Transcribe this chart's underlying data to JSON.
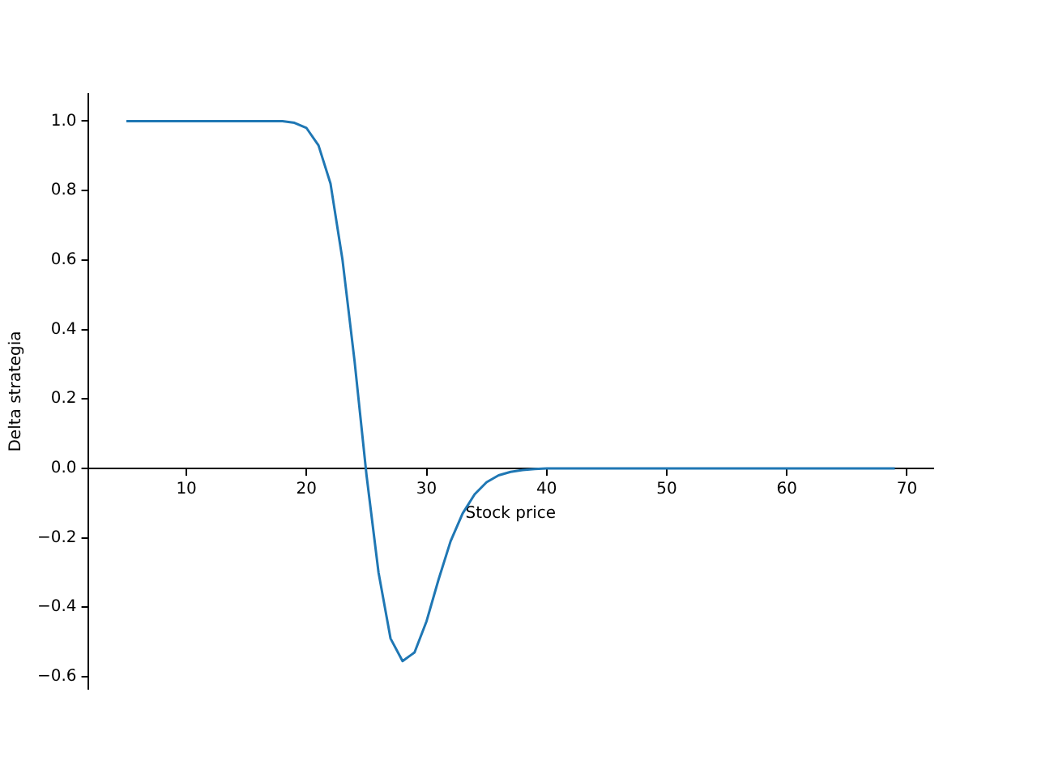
{
  "chart_data": {
    "type": "line",
    "xlabel": "Stock price",
    "ylabel": "Delta strategia",
    "x": [
      5,
      6,
      7,
      8,
      9,
      10,
      11,
      12,
      13,
      14,
      15,
      16,
      17,
      18,
      19,
      20,
      21,
      22,
      23,
      24,
      25,
      26,
      27,
      28,
      29,
      30,
      31,
      32,
      33,
      34,
      35,
      36,
      37,
      38,
      39,
      40,
      41,
      42,
      43,
      44,
      45,
      46,
      47,
      48,
      49,
      50,
      51,
      52,
      53,
      54,
      55,
      56,
      57,
      58,
      59,
      60,
      61,
      62,
      63,
      64,
      65,
      66,
      67,
      68,
      69
    ],
    "series": [
      {
        "color": "#1f77b4",
        "values": [
          1,
          1,
          1,
          1,
          1,
          1,
          1,
          1,
          1,
          1,
          1,
          1,
          1,
          1,
          0.995,
          0.98,
          0.93,
          0.82,
          0.6,
          0.31,
          -0.02,
          -0.3,
          -0.49,
          -0.555,
          -0.53,
          -0.44,
          -0.32,
          -0.21,
          -0.13,
          -0.075,
          -0.04,
          -0.02,
          -0.01,
          -0.005,
          -0.002,
          0,
          0,
          0,
          0,
          0,
          0,
          0,
          0,
          0,
          0,
          0,
          0,
          0,
          0,
          0,
          0,
          0,
          0,
          0,
          0,
          0,
          0,
          0,
          0,
          0,
          0,
          0,
          0,
          0,
          0
        ]
      }
    ],
    "xlim": [
      1.8,
      72.2
    ],
    "ylim": [
      -0.635,
      1.078
    ],
    "xticks": [
      10,
      20,
      30,
      40,
      50,
      60,
      70
    ],
    "yticks": [
      {
        "value": -0.6,
        "label": "−0.6"
      },
      {
        "value": -0.4,
        "label": "−0.4"
      },
      {
        "value": -0.2,
        "label": "−0.2"
      },
      {
        "value": 0,
        "label": "0.0"
      },
      {
        "value": 0.2,
        "label": "0.2"
      },
      {
        "value": 0.4,
        "label": "0.4"
      },
      {
        "value": 0.6,
        "label": "0.6"
      },
      {
        "value": 0.8,
        "label": "0.8"
      },
      {
        "value": 1,
        "label": "1.0"
      }
    ],
    "grid": false,
    "legend": false,
    "marker": "none",
    "line_style": "solid"
  }
}
